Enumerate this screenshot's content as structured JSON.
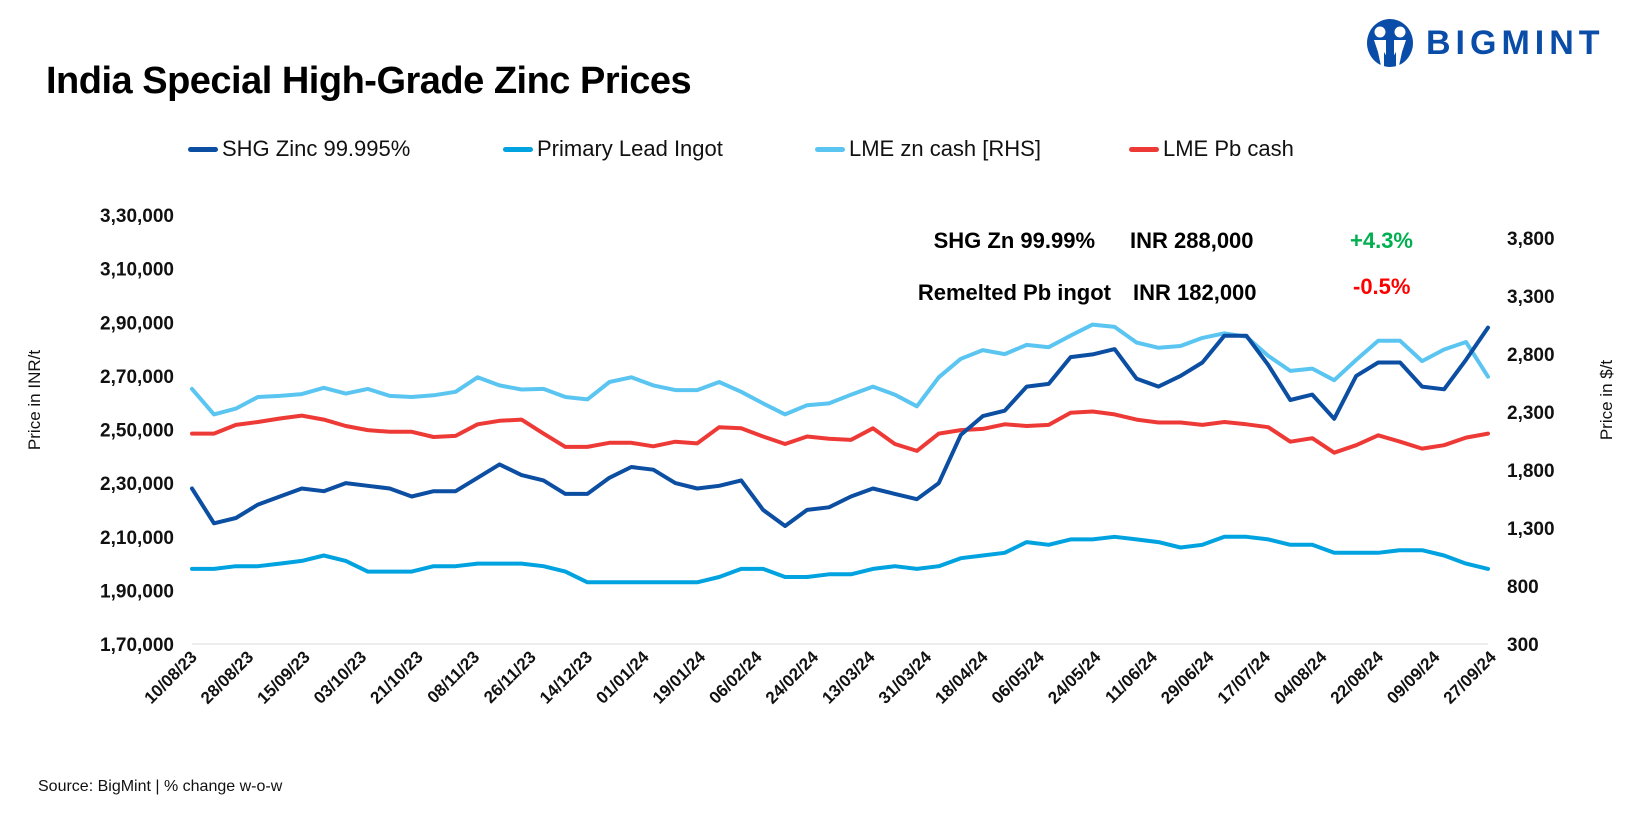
{
  "title": "India Special High-Grade Zinc Prices",
  "logo": {
    "text": "BIGMINT",
    "color": "#0A4DA8"
  },
  "source": "Source: BigMint | % change w-o-w",
  "annotations": [
    {
      "label": "SHG Zn 99.99%",
      "price": "INR 288,000",
      "change": "+4.3%",
      "change_color": "#00B050"
    },
    {
      "label": "Remelted Pb ingot",
      "price": "INR 182,000",
      "change": "-0.5%",
      "change_color": "#FF0000"
    }
  ],
  "chart_data": {
    "type": "line",
    "title": "India Special High-Grade Zinc Prices",
    "ylabel": "Price in INR/t",
    "y2label": "Price in $/t",
    "ylim": [
      170000,
      330000
    ],
    "y2lim": [
      300,
      4000
    ],
    "yticks": [
      "1,70,000",
      "1,90,000",
      "2,10,000",
      "2,30,000",
      "2,50,000",
      "2,70,000",
      "2,90,000",
      "3,10,000",
      "3,30,000"
    ],
    "y2ticks": [
      "300",
      "800",
      "1,300",
      "1,800",
      "2,300",
      "2,800",
      "3,300",
      "3,800"
    ],
    "x_range": [
      "10/08/23",
      "27/09/24"
    ],
    "xticks": [
      "10/08/23",
      "28/08/23",
      "15/09/23",
      "03/10/23",
      "21/10/23",
      "08/11/23",
      "26/11/23",
      "14/12/23",
      "01/01/24",
      "19/01/24",
      "06/02/24",
      "24/02/24",
      "13/03/24",
      "31/03/24",
      "18/04/24",
      "06/05/24",
      "24/05/24",
      "11/06/24",
      "29/06/24",
      "17/07/24",
      "04/08/24",
      "22/08/24",
      "09/09/24",
      "27/09/24"
    ],
    "grid": false,
    "legend_position": "top",
    "series": [
      {
        "name": "SHG Zinc 99.995%",
        "axis": "left",
        "color": "#0B4EA2",
        "values": [
          228000,
          215000,
          217000,
          222000,
          225000,
          228000,
          227000,
          230000,
          229000,
          228000,
          225000,
          227000,
          227000,
          232000,
          237000,
          233000,
          231000,
          226000,
          226000,
          232000,
          236000,
          235000,
          230000,
          228000,
          229000,
          231000,
          220000,
          214000,
          220000,
          221000,
          225000,
          228000,
          226000,
          224000,
          230000,
          248000,
          255000,
          257000,
          266000,
          267000,
          277000,
          278000,
          280000,
          269000,
          266000,
          270000,
          275000,
          285000,
          285000,
          274000,
          261000,
          263000,
          254000,
          270000,
          275000,
          275000,
          266000,
          265000,
          276000,
          288000
        ]
      },
      {
        "name": "Primary Lead Ingot",
        "axis": "left",
        "color": "#00A3E0",
        "values": [
          198000,
          198000,
          199000,
          199000,
          200000,
          201000,
          203000,
          201000,
          197000,
          197000,
          197000,
          199000,
          199000,
          200000,
          200000,
          200000,
          199000,
          197000,
          193000,
          193000,
          193000,
          193000,
          193000,
          193000,
          195000,
          198000,
          198000,
          195000,
          195000,
          196000,
          196000,
          198000,
          199000,
          198000,
          199000,
          202000,
          203000,
          204000,
          208000,
          207000,
          209000,
          209000,
          210000,
          209000,
          208000,
          206000,
          207000,
          210000,
          210000,
          209000,
          207000,
          207000,
          204000,
          204000,
          204000,
          205000,
          205000,
          203000,
          200000,
          198000
        ]
      },
      {
        "name": "LME zn cash [RHS]",
        "axis": "right",
        "color": "#5BC5F2",
        "values": [
          2500,
          2280,
          2330,
          2430,
          2440,
          2455,
          2510,
          2460,
          2500,
          2440,
          2430,
          2445,
          2475,
          2600,
          2530,
          2495,
          2500,
          2430,
          2410,
          2560,
          2600,
          2530,
          2490,
          2490,
          2560,
          2475,
          2375,
          2280,
          2360,
          2375,
          2450,
          2520,
          2450,
          2350,
          2600,
          2760,
          2835,
          2800,
          2880,
          2860,
          2960,
          3055,
          3035,
          2900,
          2855,
          2870,
          2940,
          2980,
          2950,
          2785,
          2655,
          2675,
          2575,
          2750,
          2915,
          2915,
          2740,
          2840,
          2905,
          2605
        ]
      },
      {
        "name": "LME Pb cash",
        "axis": "right",
        "color": "#EE3A36",
        "values": [
          2115,
          2115,
          2190,
          2215,
          2245,
          2270,
          2235,
          2180,
          2145,
          2130,
          2130,
          2085,
          2095,
          2195,
          2225,
          2235,
          2115,
          2000,
          2000,
          2035,
          2035,
          2005,
          2045,
          2030,
          2170,
          2160,
          2090,
          2025,
          2090,
          2070,
          2060,
          2160,
          2025,
          1965,
          2115,
          2145,
          2155,
          2195,
          2180,
          2190,
          2295,
          2305,
          2280,
          2235,
          2210,
          2210,
          2190,
          2215,
          2195,
          2170,
          2045,
          2075,
          1950,
          2015,
          2100,
          2045,
          1985,
          2015,
          2080,
          2115
        ]
      }
    ]
  }
}
